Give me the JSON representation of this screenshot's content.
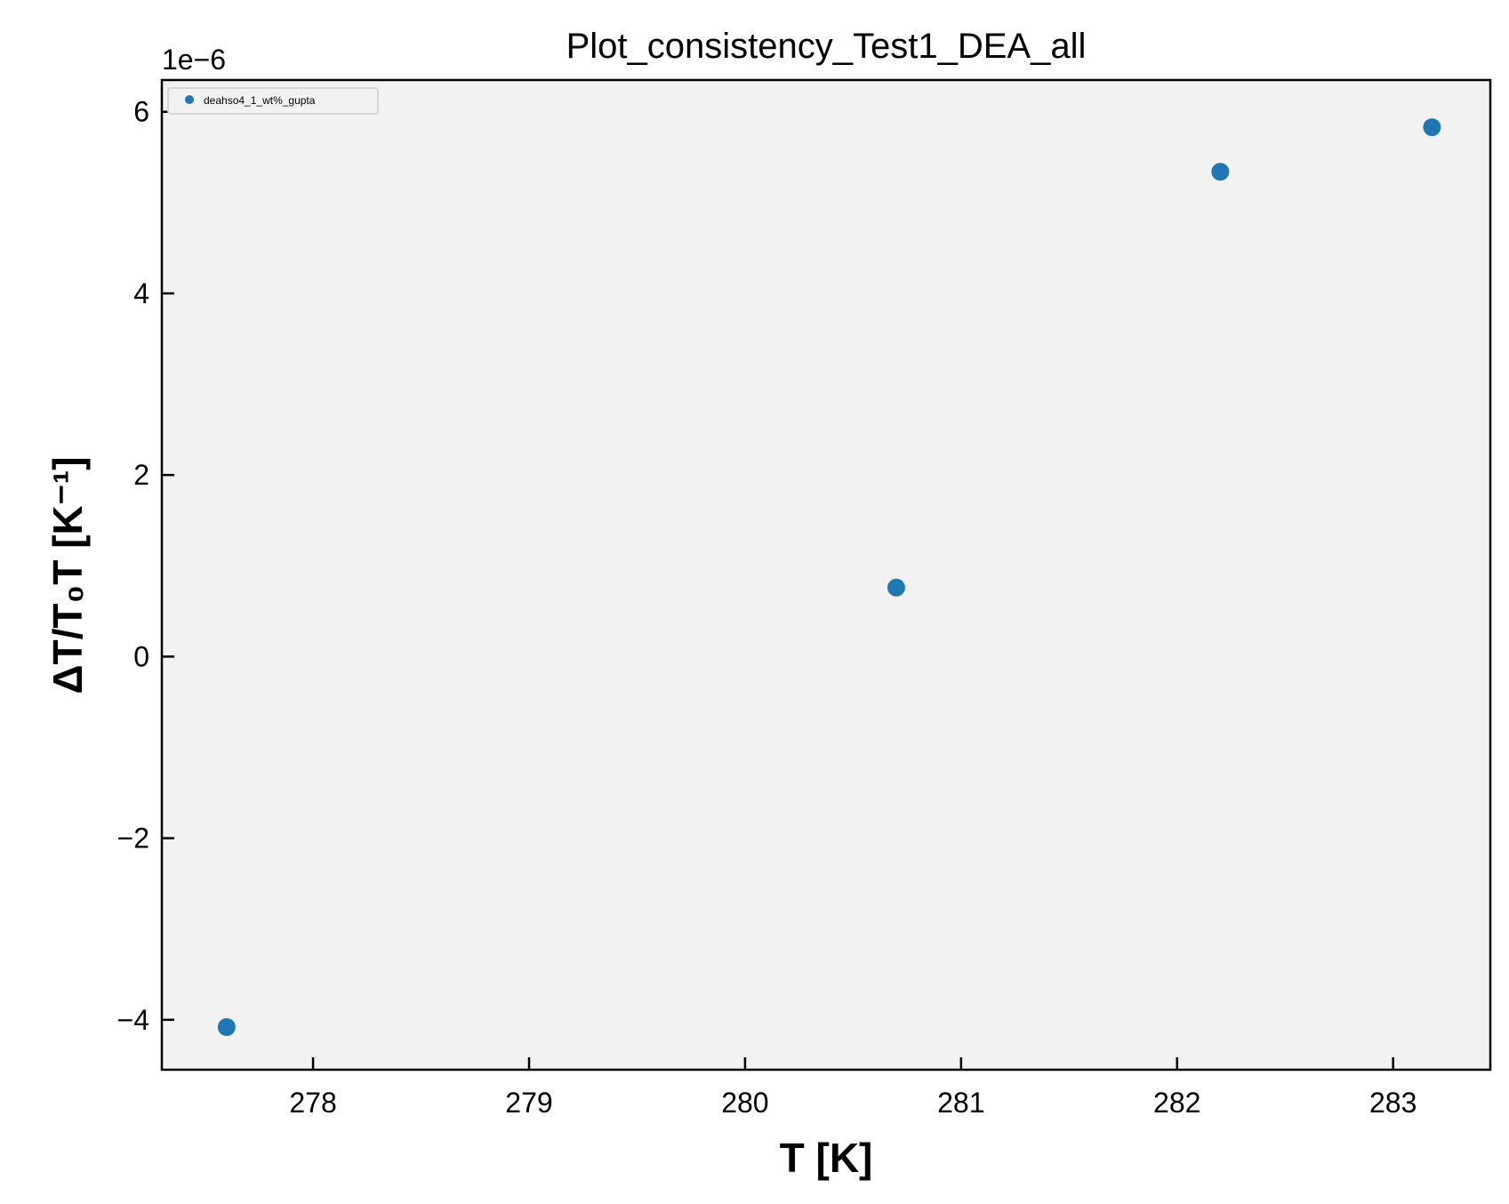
{
  "chart_data": {
    "type": "scatter",
    "title": "Plot_consistency_Test1_DEA_all",
    "xlabel": "T [K]",
    "ylabel": "ΔT/T₀T [K⁻¹]",
    "y_offset_text": "1e−6",
    "xlim": [
      277.3,
      283.45
    ],
    "ylim": [
      -4.55,
      6.35
    ],
    "x_ticks": [
      278,
      279,
      280,
      281,
      282,
      283
    ],
    "y_ticks": [
      -4,
      -2,
      0,
      2,
      4,
      6
    ],
    "x_tick_labels": [
      "278",
      "279",
      "280",
      "281",
      "282",
      "283"
    ],
    "y_tick_labels": [
      "−4",
      "−2",
      "0",
      "2",
      "4",
      "6"
    ],
    "grid": false,
    "legend_position": "top-left",
    "series": [
      {
        "name": "deahso4_1_wt%_gupta",
        "color": "#1f77b4",
        "x": [
          277.6,
          280.7,
          282.2,
          283.18
        ],
        "y": [
          -4.08,
          0.76,
          5.34,
          5.83
        ]
      }
    ]
  },
  "colors": {
    "plot_background": "#f2f2f2",
    "axes": "#000000"
  }
}
